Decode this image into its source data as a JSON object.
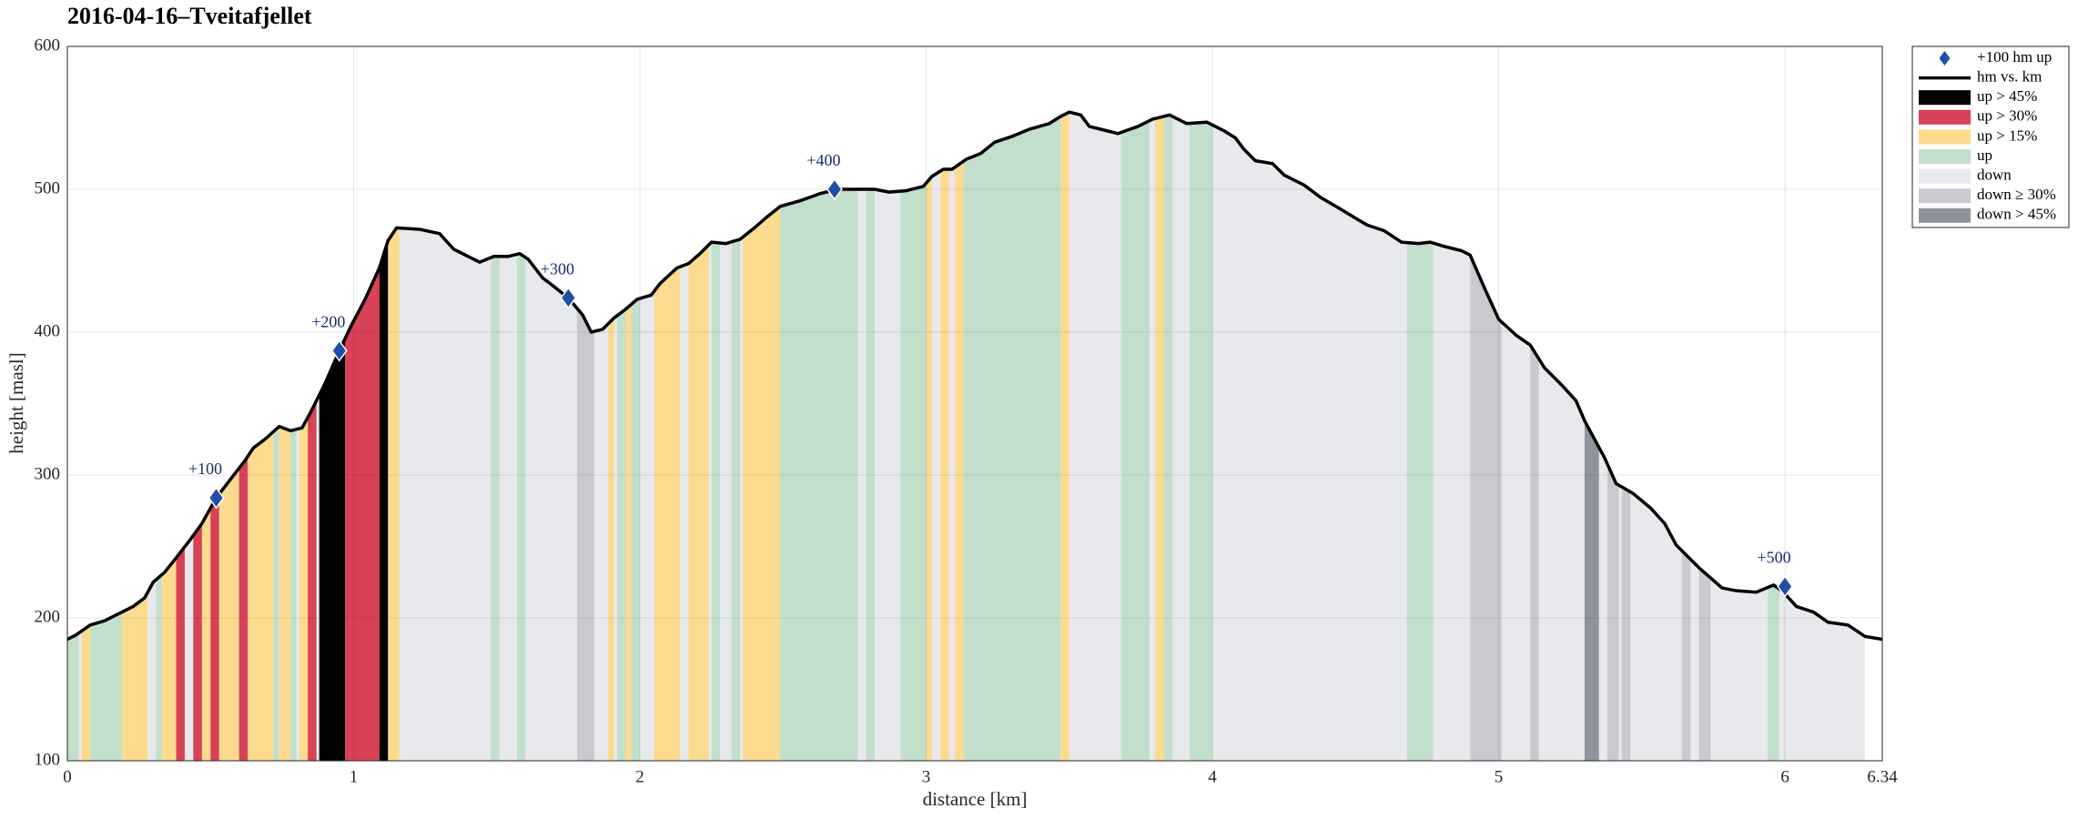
{
  "chart_data": {
    "type": "area",
    "title": "2016-04-16–Tveitafjellet",
    "xlabel": "distance [km]",
    "ylabel": "height [masl]",
    "xlim": [
      0,
      6.34
    ],
    "ylim": [
      100,
      600
    ],
    "xticks": [
      0,
      1,
      2,
      3,
      4,
      5,
      6,
      6.34
    ],
    "yticks": [
      100,
      200,
      300,
      400,
      500,
      600
    ],
    "grid": true,
    "legend": "outside",
    "markers": {
      "name": "+100 hm up",
      "color": "#1f4fa6",
      "x": [
        0.52,
        0.95,
        1.75,
        2.68,
        6.0
      ],
      "values": [
        284,
        387,
        424,
        500,
        222
      ],
      "labels": [
        "+100",
        "+200",
        "+300",
        "+400",
        "+500"
      ]
    },
    "profile": {
      "name": "hm vs. km",
      "color": "#000000",
      "x": [
        0,
        0.03,
        0.08,
        0.13,
        0.18,
        0.23,
        0.27,
        0.3,
        0.34,
        0.38,
        0.43,
        0.47,
        0.52,
        0.57,
        0.62,
        0.65,
        0.69,
        0.74,
        0.78,
        0.82,
        0.85,
        0.9,
        0.95,
        0.99,
        1.04,
        1.09,
        1.12,
        1.15,
        1.23,
        1.3,
        1.35,
        1.4,
        1.44,
        1.49,
        1.54,
        1.58,
        1.61,
        1.66,
        1.68,
        1.75,
        1.8,
        1.83,
        1.87,
        1.91,
        1.95,
        1.99,
        2.04,
        2.07,
        2.13,
        2.17,
        2.21,
        2.25,
        2.3,
        2.35,
        2.4,
        2.44,
        2.49,
        2.56,
        2.63,
        2.69,
        2.75,
        2.82,
        2.87,
        2.93,
        2.99,
        3.02,
        3.06,
        3.09,
        3.14,
        3.19,
        3.24,
        3.3,
        3.36,
        3.43,
        3.47,
        3.5,
        3.54,
        3.57,
        3.63,
        3.67,
        3.74,
        3.79,
        3.85,
        3.91,
        3.98,
        4.04,
        4.08,
        4.11,
        4.15,
        4.21,
        4.25,
        4.32,
        4.38,
        4.44,
        4.49,
        4.54,
        4.6,
        4.66,
        4.72,
        4.76,
        4.81,
        4.87,
        4.9,
        4.95,
        5.0,
        5.06,
        5.11,
        5.16,
        5.22,
        5.27,
        5.3,
        5.37,
        5.41,
        5.47,
        5.53,
        5.58,
        5.62,
        5.7,
        5.78,
        5.83,
        5.9,
        5.96,
        5.99,
        6.04,
        6.1,
        6.15,
        6.22,
        6.28,
        6.34
      ],
      "values": [
        185,
        188,
        195,
        198,
        203,
        208,
        214,
        225,
        232,
        242,
        255,
        266,
        284,
        297,
        310,
        319,
        325,
        334,
        331,
        333,
        344,
        364,
        387,
        404,
        423,
        445,
        464,
        473,
        472,
        469,
        458,
        453,
        449,
        453,
        453,
        455,
        451,
        438,
        435,
        424,
        412,
        400,
        402,
        410,
        416,
        423,
        426,
        434,
        445,
        448,
        455,
        463,
        462,
        465,
        473,
        480,
        488,
        492,
        497,
        500,
        500,
        500,
        498,
        499,
        502,
        509,
        514,
        514,
        521,
        525,
        533,
        537,
        542,
        546,
        551,
        554,
        552,
        544,
        541,
        539,
        544,
        549,
        552,
        546,
        547,
        541,
        536,
        528,
        520,
        518,
        510,
        503,
        494,
        487,
        481,
        475,
        471,
        463,
        462,
        463,
        460,
        457,
        454,
        431,
        409,
        398,
        391,
        375,
        363,
        352,
        338,
        312,
        294,
        287,
        277,
        266,
        251,
        235,
        221,
        219,
        218,
        223,
        219,
        208,
        204,
        197,
        195,
        187,
        185
      ]
    },
    "bands": [
      {
        "name": "up > 45%",
        "color": "#000000",
        "spans": [
          [
            0.88,
            0.97
          ],
          [
            1.09,
            1.12
          ]
        ]
      },
      {
        "name": "up > 30%",
        "color": "#d94156",
        "spans": [
          [
            0.38,
            0.41
          ],
          [
            0.44,
            0.47
          ],
          [
            0.5,
            0.53
          ],
          [
            0.6,
            0.63
          ],
          [
            0.84,
            0.87
          ],
          [
            0.97,
            1.09
          ]
        ]
      },
      {
        "name": "up > 15%",
        "color": "#fddb8e",
        "spans": [
          [
            0.05,
            0.08
          ],
          [
            0.19,
            0.28
          ],
          [
            0.33,
            0.38
          ],
          [
            0.47,
            0.5
          ],
          [
            0.53,
            0.6
          ],
          [
            0.63,
            0.72
          ],
          [
            0.74,
            0.78
          ],
          [
            0.81,
            0.84
          ],
          [
            1.12,
            1.16
          ],
          [
            1.89,
            1.91
          ],
          [
            1.95,
            1.97
          ],
          [
            2.05,
            2.14
          ],
          [
            2.17,
            2.24
          ],
          [
            2.36,
            2.49
          ],
          [
            3.0,
            3.02
          ],
          [
            3.05,
            3.08
          ],
          [
            3.1,
            3.13
          ],
          [
            3.47,
            3.5
          ],
          [
            3.8,
            3.83
          ]
        ]
      },
      {
        "name": "up",
        "color": "#c2dfcc",
        "spans": [
          [
            0,
            0.04
          ],
          [
            0.08,
            0.19
          ],
          [
            0.31,
            0.33
          ],
          [
            0.72,
            0.74
          ],
          [
            0.78,
            0.8
          ],
          [
            1.48,
            1.51
          ],
          [
            1.57,
            1.6
          ],
          [
            1.92,
            1.95
          ],
          [
            1.97,
            2.0
          ],
          [
            2.25,
            2.28
          ],
          [
            2.32,
            2.35
          ],
          [
            2.49,
            2.76
          ],
          [
            2.79,
            2.82
          ],
          [
            2.91,
            3.0
          ],
          [
            3.13,
            3.47
          ],
          [
            3.68,
            3.78
          ],
          [
            3.83,
            3.86
          ],
          [
            3.92,
            4.0
          ],
          [
            4.68,
            4.77
          ],
          [
            5.94,
            5.98
          ]
        ]
      },
      {
        "name": "down",
        "color": "#e8e9ec",
        "spans": [
          [
            0,
            6.28
          ]
        ]
      },
      {
        "name": "down ≥ 30%",
        "color": "#c8cacf",
        "spans": [
          [
            1.78,
            1.84
          ],
          [
            4.9,
            5.01
          ],
          [
            5.11,
            5.14
          ],
          [
            5.38,
            5.42
          ],
          [
            5.43,
            5.46
          ],
          [
            5.64,
            5.67
          ],
          [
            5.7,
            5.74
          ]
        ]
      },
      {
        "name": "down > 45%",
        "color": "#8f939d",
        "spans": [
          [
            5.3,
            5.35
          ]
        ]
      }
    ]
  }
}
